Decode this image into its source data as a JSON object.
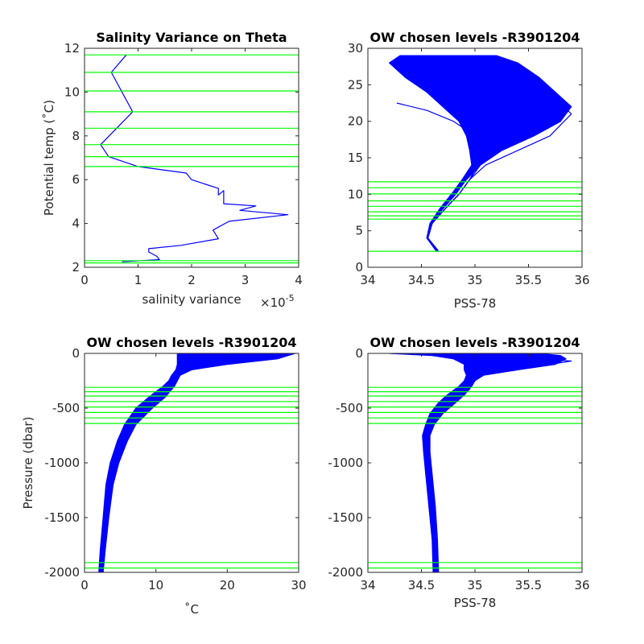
{
  "colors": {
    "data": "#0000ff",
    "levels": "#00ff00",
    "axes": "#262626"
  },
  "chart_data": [
    {
      "id": "p1",
      "type": "line",
      "title": "Salinity Variance on Theta",
      "xlabel": "salinity variance",
      "x_exponent": "×10",
      "x_exponent_power": "-5",
      "ylabel": "Potential temp (˚C)",
      "xlim": [
        0,
        4
      ],
      "ylim": [
        2,
        12
      ],
      "xticks": [
        0,
        1,
        2,
        3,
        4
      ],
      "yticks": [
        2,
        4,
        6,
        8,
        10,
        12
      ],
      "xtick_labels": [
        "0",
        "1",
        "2",
        "3",
        "4"
      ],
      "ytick_labels": [
        "2",
        "4",
        "6",
        "8",
        "10",
        "12"
      ],
      "hlines": [
        2.2,
        2.3,
        6.6,
        7.05,
        7.6,
        8.35,
        9.1,
        10.05,
        10.9,
        11.7
      ],
      "series": [
        {
          "x": [
            0.78,
            0.5,
            0.9,
            0.6,
            0.3,
            0.45,
            1.0,
            1.9,
            2.0,
            2.5,
            2.5,
            2.6,
            2.6,
            3.2,
            2.9,
            3.8,
            2.7,
            2.4,
            2.5,
            1.8,
            1.2,
            1.2,
            1.35,
            1.4,
            0.7
          ],
          "y": [
            11.7,
            10.9,
            9.1,
            8.35,
            7.6,
            7.05,
            6.6,
            6.3,
            6.0,
            5.6,
            5.3,
            5.5,
            4.9,
            4.8,
            4.6,
            4.4,
            4.1,
            3.7,
            3.3,
            3.0,
            2.85,
            2.7,
            2.5,
            2.35,
            2.25
          ]
        }
      ]
    },
    {
      "id": "p2",
      "type": "line",
      "title": "OW chosen levels -R3901204",
      "xlabel": "PSS-78",
      "ylabel": "",
      "xlim": [
        34,
        36
      ],
      "ylim": [
        0,
        30
      ],
      "xticks": [
        34,
        34.5,
        35,
        35.5,
        36
      ],
      "yticks": [
        0,
        5,
        10,
        15,
        20,
        25,
        30
      ],
      "xtick_labels": [
        "34",
        "34.5",
        "35",
        "35.5",
        "36"
      ],
      "ytick_labels": [
        "0",
        "5",
        "10",
        "15",
        "20",
        "25",
        "30"
      ],
      "hlines": [
        2.2,
        6.6,
        7.05,
        7.6,
        8.35,
        9.1,
        10.05,
        10.9,
        11.7
      ],
      "envelope": {
        "y": [
          2.2,
          4,
          6,
          8,
          10,
          12,
          14,
          16,
          18,
          20,
          22,
          24,
          26,
          28,
          29
        ],
        "x_left": [
          34.64,
          34.55,
          34.58,
          34.67,
          34.78,
          34.88,
          34.97,
          34.95,
          34.92,
          34.85,
          34.7,
          34.55,
          34.35,
          34.2,
          34.3
        ],
        "x_right": [
          34.66,
          34.56,
          34.6,
          34.7,
          34.82,
          34.92,
          35.05,
          35.25,
          35.55,
          35.8,
          35.9,
          35.75,
          35.6,
          35.4,
          35.2
        ]
      },
      "series": [
        {
          "name": "",
          "x": [
            34.66,
            34.56,
            34.6,
            34.72,
            34.85,
            34.95,
            35.05,
            35.25,
            35.55,
            35.8,
            35.75,
            35.4,
            34.7
          ],
          "y": [
            2.2,
            4,
            6,
            8,
            10,
            12,
            14,
            16,
            18,
            20,
            22,
            25,
            28.5
          ]
        },
        {
          "name": "",
          "x": [
            34.66,
            34.56,
            34.6,
            34.72,
            34.85,
            34.95,
            35.02,
            35.1,
            35.0,
            34.8,
            34.55,
            34.27
          ],
          "y": [
            2.2,
            4,
            6,
            8,
            10,
            12,
            14,
            16,
            18,
            20,
            21.5,
            22.5
          ]
        },
        {
          "name": "",
          "x": [
            34.66,
            34.56,
            34.6,
            34.72,
            34.85,
            34.95,
            35.1,
            35.4,
            35.7,
            35.9,
            35.7,
            35.2
          ],
          "y": [
            2.2,
            4,
            6,
            8,
            10,
            12,
            14,
            16,
            18,
            21,
            24,
            27
          ]
        },
        {
          "name": "",
          "x": [
            34.66,
            34.56,
            34.6,
            34.72,
            34.85,
            34.95,
            35.05,
            35.2,
            35.3,
            35.1,
            34.6,
            34.25
          ],
          "y": [
            2.2,
            4,
            6,
            8,
            10,
            12,
            14,
            16,
            19,
            22,
            25,
            27.5
          ]
        }
      ]
    },
    {
      "id": "p3",
      "type": "line",
      "title": "OW chosen levels -R3901204",
      "xlabel": "˚C",
      "ylabel": "Pressure (dbar)",
      "xlim": [
        0,
        30
      ],
      "ylim": [
        -2000,
        0
      ],
      "xticks": [
        0,
        10,
        20,
        30
      ],
      "yticks": [
        -2000,
        -1500,
        -1000,
        -500,
        0
      ],
      "xtick_labels": [
        "0",
        "10",
        "20",
        "30"
      ],
      "ytick_labels": [
        "-2000",
        "-1500",
        "-1000",
        "-500",
        "0"
      ],
      "hlines": [
        -310,
        -350,
        -390,
        -440,
        -490,
        -540,
        -590,
        -640,
        -1910,
        -1960
      ],
      "envelope": {
        "y": [
          -2000,
          -1800,
          -1500,
          -1200,
          -1000,
          -800,
          -650,
          -500,
          -400,
          -300,
          -250,
          -200,
          -150,
          -100,
          -50,
          0
        ],
        "x_left": [
          2.0,
          2.2,
          2.6,
          3.0,
          3.6,
          4.6,
          5.6,
          7.2,
          9.0,
          11.0,
          11.8,
          12.2,
          12.8,
          13.0,
          13.0,
          13.0
        ],
        "x_right": [
          2.6,
          2.9,
          3.4,
          4.0,
          4.8,
          6.0,
          7.2,
          9.5,
          11.3,
          12.6,
          13.0,
          13.4,
          15.0,
          20.0,
          27.0,
          29.5
        ]
      },
      "series": []
    },
    {
      "id": "p4",
      "type": "line",
      "title": "OW chosen levels -R3901204",
      "xlabel": "PSS-78",
      "ylabel": "",
      "xlim": [
        34,
        36
      ],
      "ylim": [
        -2000,
        0
      ],
      "xticks": [
        34,
        34.5,
        35,
        35.5,
        36
      ],
      "yticks": [
        -2000,
        -1500,
        -1000,
        -500,
        0
      ],
      "xtick_labels": [
        "34",
        "34.5",
        "35",
        "35.5",
        "36"
      ],
      "ytick_labels": [
        "-2000",
        "-1500",
        "-1000",
        "-500",
        "0"
      ],
      "hlines": [
        -310,
        -350,
        -390,
        -440,
        -490,
        -540,
        -590,
        -640,
        -1910,
        -1960
      ],
      "envelope": {
        "y": [
          -2000,
          -1700,
          -1400,
          -1100,
          -900,
          -750,
          -650,
          -550,
          -450,
          -380,
          -300,
          -250,
          -200,
          -150,
          -100,
          -50,
          -20,
          0
        ],
        "x_left": [
          34.61,
          34.6,
          34.57,
          34.54,
          34.52,
          34.51,
          34.54,
          34.58,
          34.66,
          34.74,
          34.85,
          34.9,
          34.92,
          34.9,
          34.9,
          34.8,
          34.6,
          34.2
        ],
        "x_right": [
          34.66,
          34.65,
          34.63,
          34.6,
          34.58,
          34.58,
          34.62,
          34.7,
          34.82,
          34.9,
          34.97,
          35.0,
          35.08,
          35.4,
          35.75,
          35.85,
          35.8,
          35.6
        ]
      },
      "series": [
        {
          "name": "",
          "x": [
            34.92,
            35.2,
            35.7,
            35.9,
            35.6,
            35.3
          ],
          "y": [
            -150,
            -120,
            -100,
            -70,
            -50,
            -30
          ]
        },
        {
          "name": "",
          "x": [
            34.88,
            34.95,
            34.9
          ],
          "y": [
            -350,
            -330,
            -300
          ]
        }
      ]
    }
  ]
}
